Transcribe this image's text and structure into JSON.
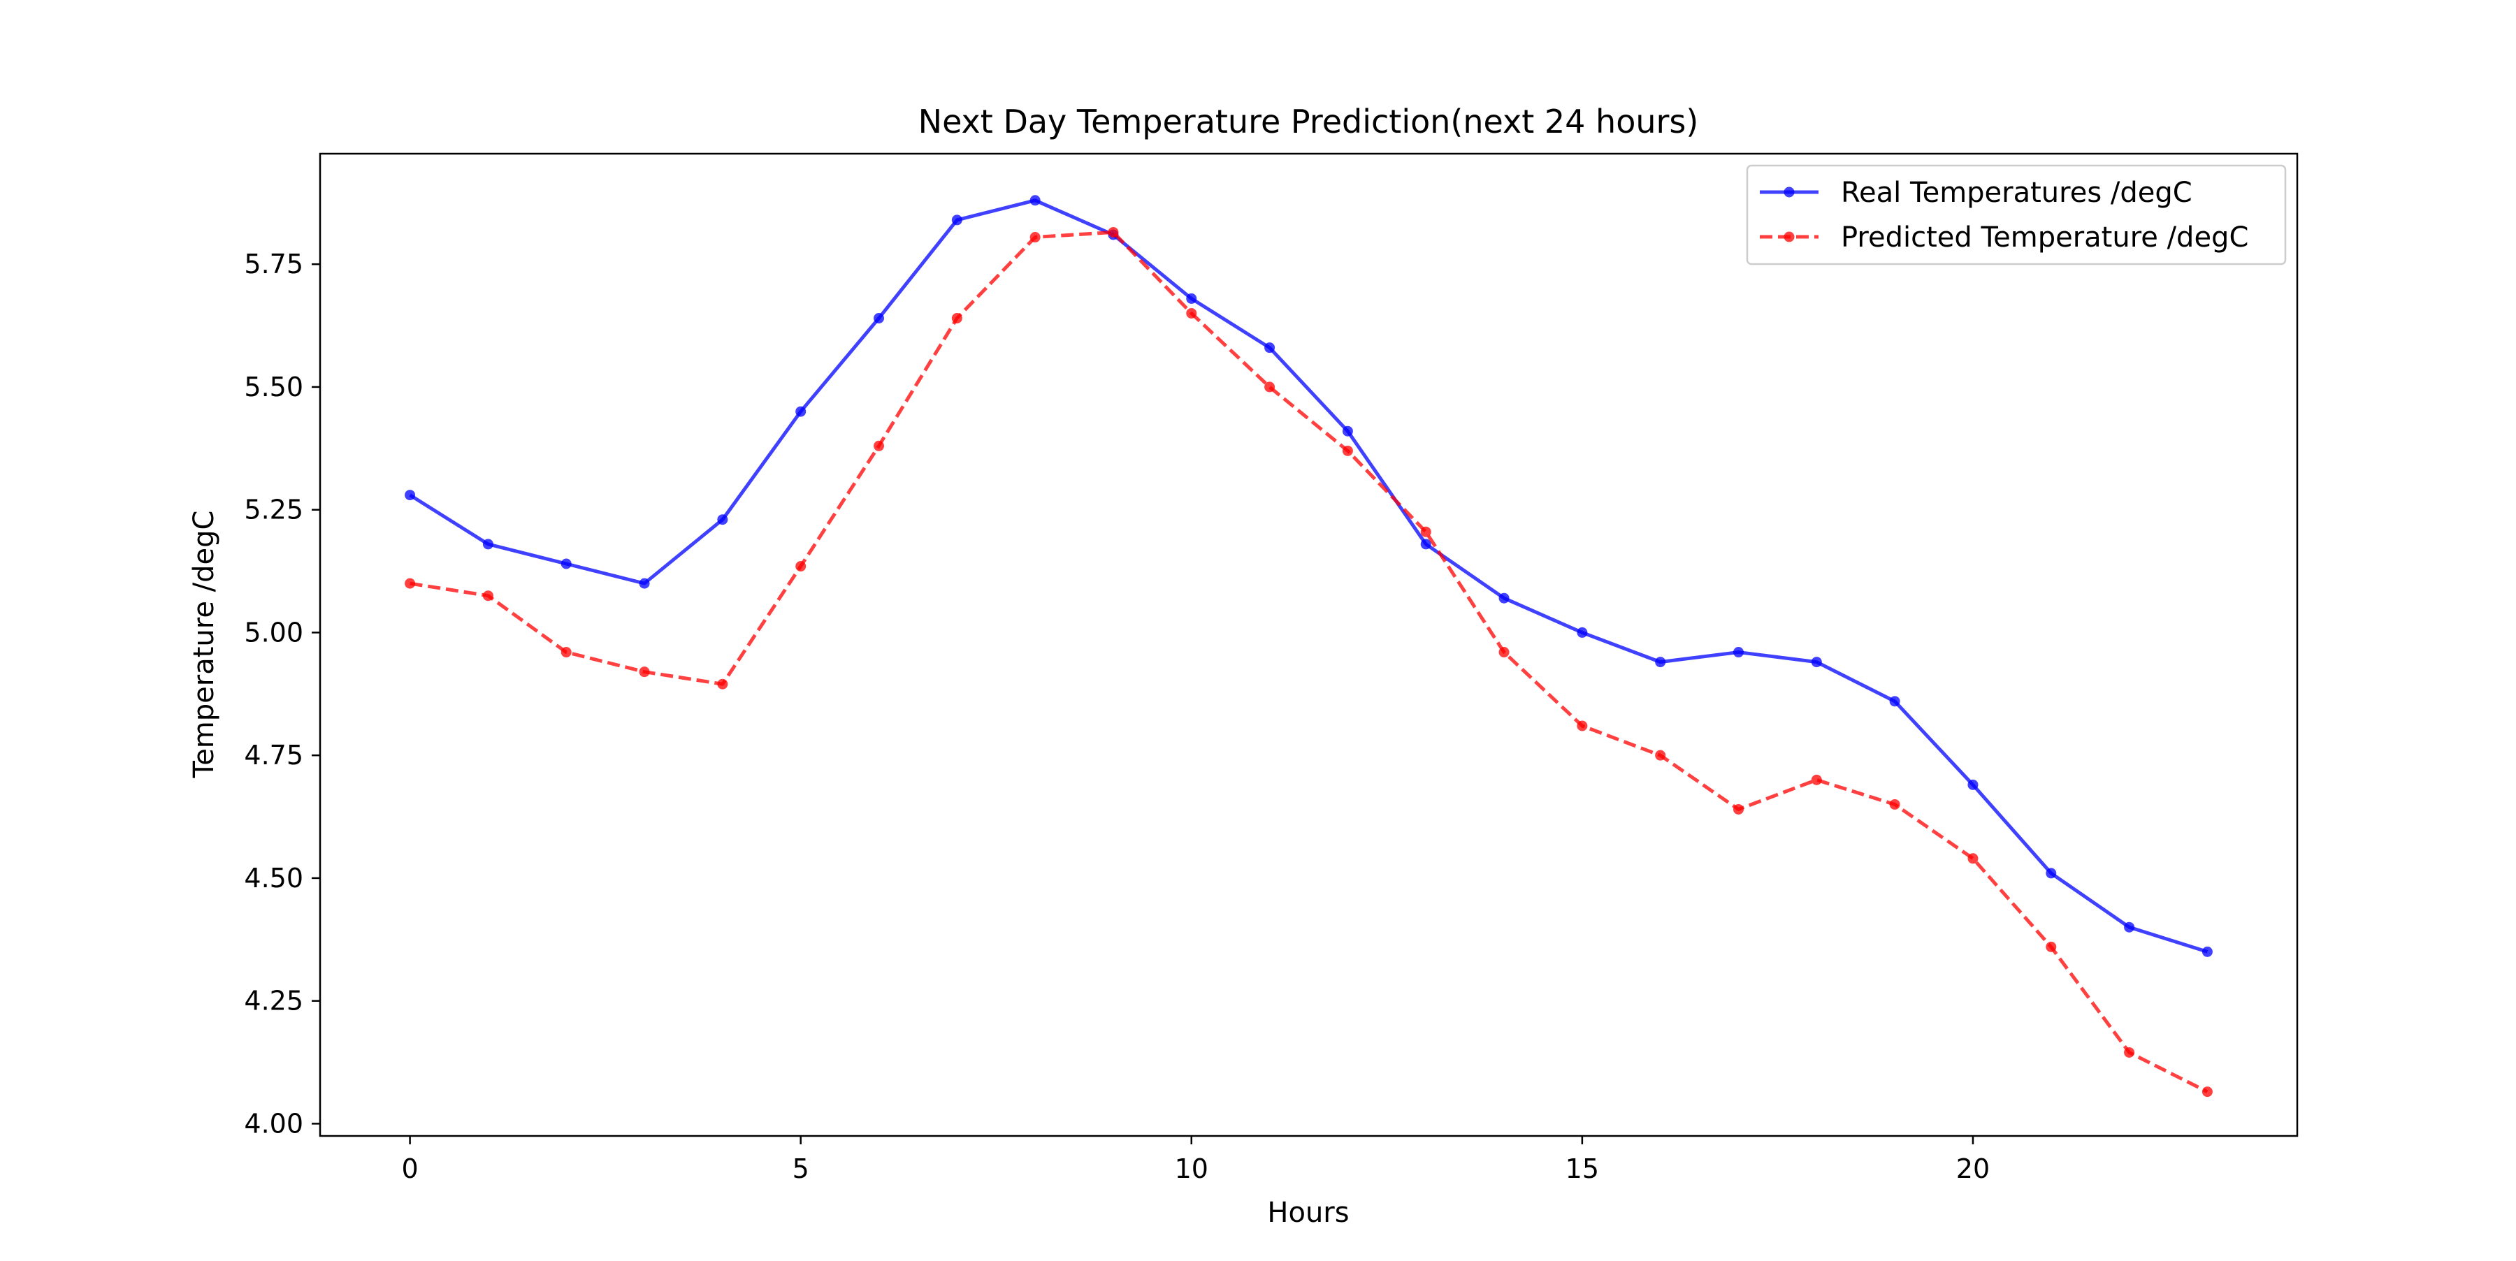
{
  "chart_data": {
    "type": "line",
    "title": "Next Day Temperature Prediction(next 24 hours)",
    "xlabel": "Hours",
    "ylabel": "Temperature /degC",
    "xlim": [
      -1.15,
      24.15
    ],
    "ylim": [
      3.975,
      5.975
    ],
    "xticks": [
      0,
      5,
      10,
      15,
      20
    ],
    "xtick_labels": [
      "0",
      "5",
      "10",
      "15",
      "20"
    ],
    "yticks": [
      4.0,
      4.25,
      4.5,
      4.75,
      5.0,
      5.25,
      5.5,
      5.75
    ],
    "ytick_labels": [
      "4.00",
      "4.25",
      "4.50",
      "4.75",
      "5.00",
      "5.25",
      "5.50",
      "5.75"
    ],
    "grid": false,
    "legend_position": "top-right",
    "x": [
      0,
      1,
      2,
      3,
      4,
      5,
      6,
      7,
      8,
      9,
      10,
      11,
      12,
      13,
      14,
      15,
      16,
      17,
      18,
      19,
      20,
      21,
      22,
      23
    ],
    "series": [
      {
        "name": "Real Temperatures /degC",
        "color": "#0000ff",
        "linestyle": "solid",
        "marker": "circle",
        "values": [
          5.28,
          5.18,
          5.14,
          5.1,
          5.23,
          5.45,
          5.64,
          5.84,
          5.88,
          5.81,
          5.68,
          5.58,
          5.41,
          5.18,
          5.07,
          5.0,
          4.94,
          4.96,
          4.94,
          4.86,
          4.69,
          4.51,
          4.4,
          4.35
        ]
      },
      {
        "name": "Predicted Temperature /degC",
        "color": "#ff0000",
        "linestyle": "dashed",
        "marker": "circle",
        "values": [
          5.1,
          5.075,
          4.96,
          4.92,
          4.895,
          5.135,
          5.38,
          5.64,
          5.805,
          5.815,
          5.65,
          5.5,
          5.37,
          5.205,
          4.96,
          4.81,
          4.75,
          4.64,
          4.7,
          4.65,
          4.54,
          4.36,
          4.145,
          4.065
        ]
      }
    ]
  }
}
